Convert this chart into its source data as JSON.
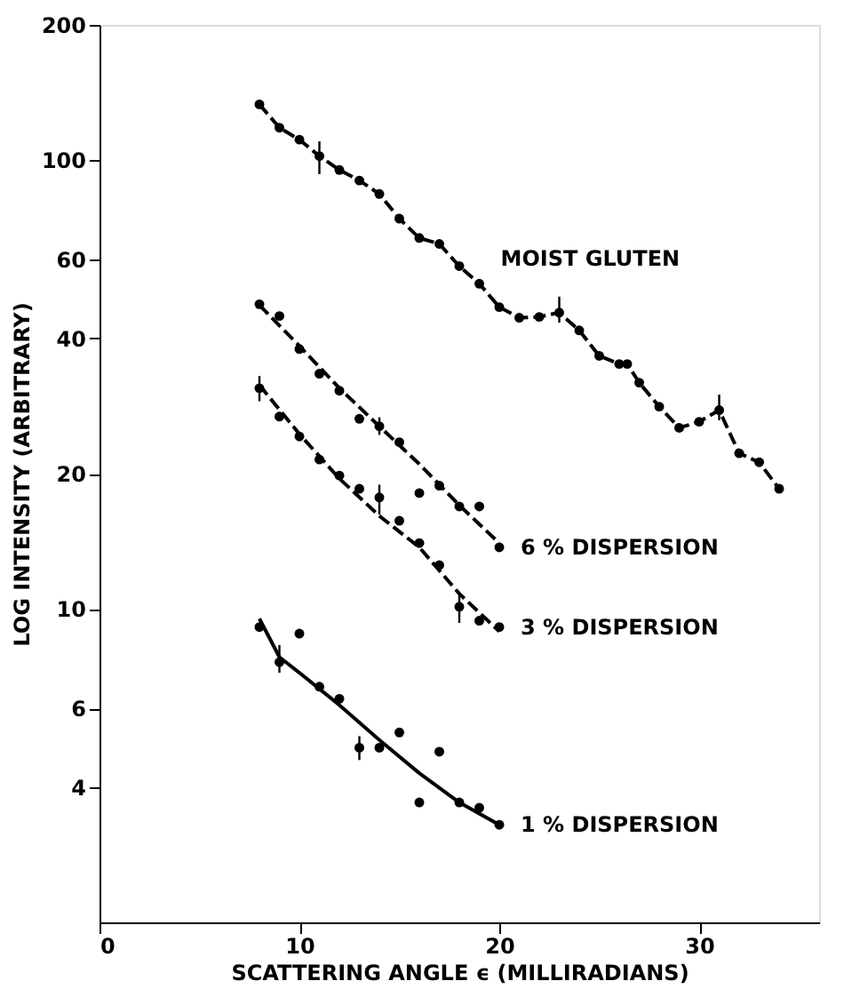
{
  "chart_data": {
    "type": "scatter",
    "xlabel": "SCATTERING ANGLE ϵ (MILLIRADIANS)",
    "ylabel": "LOG INTENSITY (ARBITRARY)",
    "xlim": [
      0,
      36
    ],
    "xticks": [
      0,
      10,
      20,
      30
    ],
    "ylim": [
      2,
      200
    ],
    "yticks": [
      4,
      6,
      10,
      20,
      40,
      60,
      100,
      200
    ],
    "log": "y",
    "grid": false,
    "series": [
      {
        "name": "MOIST GLUTEN",
        "type": "line",
        "marker": "circle",
        "line_style": "dashed",
        "color": "#000000",
        "x": [
          8,
          9,
          10,
          11,
          12,
          13,
          14,
          15,
          16,
          17,
          18,
          19,
          20,
          21,
          22,
          23,
          24,
          25,
          26,
          26.4,
          27,
          28,
          29,
          30,
          31,
          32,
          33,
          34
        ],
        "values": [
          133,
          118,
          111,
          102,
          95,
          90,
          84,
          74,
          67,
          65,
          58,
          53,
          47,
          44.5,
          44.7,
          45.7,
          41.7,
          36.6,
          35.1,
          35.1,
          31.9,
          28.2,
          25.3,
          26.1,
          27.7,
          22.2,
          21.2,
          18.5
        ],
        "errors": [
          null,
          null,
          null,
          [
            93,
            110
          ],
          null,
          null,
          null,
          null,
          null,
          null,
          null,
          null,
          null,
          null,
          null,
          [
            43.4,
            49.6
          ],
          null,
          null,
          null,
          null,
          null,
          null,
          null,
          null,
          [
            26.3,
            30.0
          ],
          null,
          null,
          null
        ]
      },
      {
        "name": "6 % DISPERSION",
        "color": "#000000",
        "x": [
          8,
          9,
          10,
          11,
          12,
          13,
          14,
          15,
          16,
          17,
          18,
          19,
          20
        ],
        "values": [
          47.7,
          44.9,
          37.9,
          33.4,
          30.6,
          26.5,
          25.5,
          23.5,
          18.1,
          18.8,
          16.9,
          16.9,
          13.7
        ],
        "errors": [
          null,
          null,
          null,
          null,
          null,
          null,
          [
            24.4,
            26.7
          ],
          null,
          null,
          null,
          null,
          null,
          null
        ]
      },
      {
        "type": "line",
        "line_style": "dashed",
        "color": "#000000",
        "x": [
          8,
          10,
          12,
          14,
          16,
          18,
          20
        ],
        "values": [
          47.5,
          38.5,
          31,
          25.5,
          21,
          17,
          14
        ]
      },
      {
        "name": "3 % DISPERSION",
        "color": "#000000",
        "x": [
          8,
          9,
          10,
          11,
          12,
          13,
          14,
          15,
          16,
          17,
          18,
          19,
          20
        ],
        "values": [
          31.0,
          26.8,
          24.2,
          21.5,
          19.8,
          18.5,
          17.7,
          15.7,
          14.0,
          12.5,
          10.1,
          9.4,
          9.1
        ],
        "errors": [
          [
            29,
            33
          ],
          null,
          null,
          null,
          null,
          null,
          [
            16.2,
            18.9
          ],
          null,
          null,
          null,
          [
            9.3,
            10.9
          ],
          null,
          null
        ]
      },
      {
        "type": "line",
        "line_style": "dashed",
        "color": "#000000",
        "x": [
          8,
          10,
          12,
          14,
          16,
          18,
          20
        ],
        "values": [
          31.5,
          24.5,
          19.5,
          16.1,
          13.7,
          10.8,
          8.9
        ]
      },
      {
        "name": "1 % DISPERSION",
        "color": "#000000",
        "x": [
          8,
          9,
          10,
          11,
          12,
          13,
          14,
          15,
          16,
          17,
          18,
          19,
          20
        ],
        "values": [
          9.1,
          7.6,
          8.8,
          6.7,
          6.3,
          4.9,
          4.9,
          5.3,
          3.7,
          4.8,
          3.7,
          3.6,
          3.3
        ],
        "errors": [
          null,
          [
            7.2,
            8.3
          ],
          null,
          null,
          null,
          [
            4.6,
            5.2
          ],
          null,
          null,
          null,
          null,
          null,
          null,
          null
        ]
      },
      {
        "type": "line",
        "line_style": "solid",
        "color": "#000000",
        "x": [
          8,
          9,
          10,
          12,
          14,
          16,
          18,
          20
        ],
        "values": [
          9.5,
          7.8,
          7.2,
          6.1,
          5.1,
          4.3,
          3.7,
          3.3
        ]
      }
    ]
  }
}
